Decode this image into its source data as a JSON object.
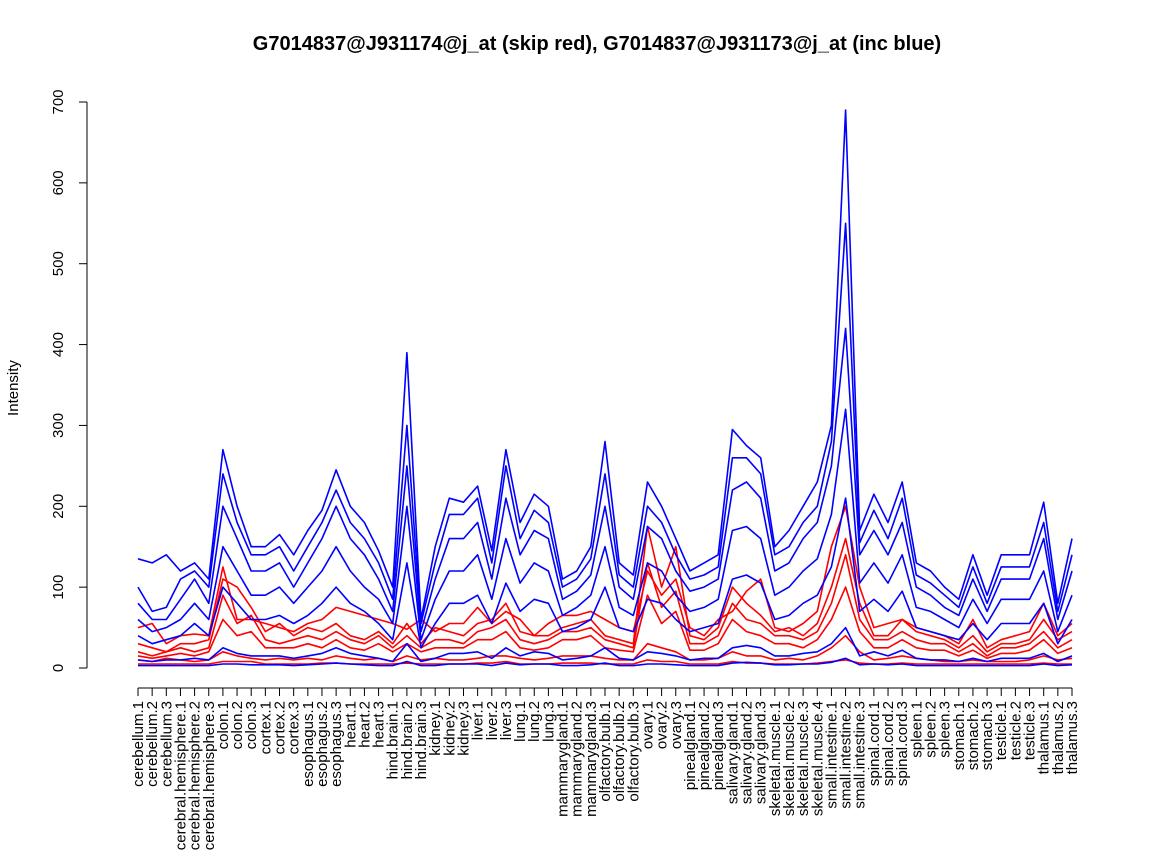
{
  "chart_data": {
    "type": "line",
    "title": "G7014837@J931174@j_at (skip red), G7014837@J931173@j_at (inc blue)",
    "xlabel": "",
    "ylabel": "Intensity",
    "ylim": [
      0,
      700
    ],
    "yticks": [
      0,
      100,
      200,
      300,
      400,
      500,
      600,
      700
    ],
    "grid": false,
    "categories": [
      "cerebellum.1",
      "cerebellum.2",
      "cerebellum.3",
      "cerebral.hemisphere.1",
      "cerebral.hemisphere.2",
      "cerebral.hemisphere.3",
      "colon.1",
      "colon.2",
      "colon.3",
      "cortex.1",
      "cortex.2",
      "cortex.3",
      "esophagus.1",
      "esophagus.2",
      "esophagus.3",
      "heart.1",
      "heart.2",
      "heart.3",
      "hind.brain.1",
      "hind.brain.2",
      "hind.brain.3",
      "kidney.1",
      "kidney.2",
      "kidney.3",
      "liver.1",
      "liver.2",
      "liver.3",
      "lung.1",
      "lung.2",
      "lung.3",
      "mammarygland.1",
      "mammarygland.2",
      "mammarygland.3",
      "olfactory.bulb.1",
      "olfactory.bulb.2",
      "olfactory.bulb.3",
      "ovary.1",
      "ovary.2",
      "ovary.3",
      "pinealgland.1",
      "pinealgland.2",
      "pinealgland.3",
      "salivary.gland.1",
      "salivary.gland.2",
      "salivary.gland.3",
      "skeletal.muscle.1",
      "skeletal.muscle.2",
      "skeletal.muscle.3",
      "skeletal.muscle.4",
      "small.intestine.1",
      "small.intestine.2",
      "small.intestine.3",
      "spinal.cord.1",
      "spinal.cord.2",
      "spinal.cord.3",
      "spleen.1",
      "spleen.2",
      "spleen.3",
      "stomach.1",
      "stomach.2",
      "stomach.3",
      "testicle.1",
      "testicle.2",
      "testicle.3",
      "thalamus.1",
      "thalamus.2",
      "thalamus.3"
    ],
    "series": [
      {
        "name": "skip-1",
        "group": "skip",
        "color": "#ff0000",
        "values": [
          50,
          55,
          30,
          40,
          42,
          40,
          125,
          60,
          60,
          55,
          50,
          45,
          55,
          60,
          75,
          70,
          65,
          60,
          55,
          48,
          60,
          45,
          55,
          55,
          75,
          55,
          70,
          60,
          40,
          55,
          65,
          65,
          70,
          60,
          50,
          45,
          120,
          90,
          110,
          50,
          40,
          60,
          70,
          95,
          110,
          50,
          45,
          55,
          70,
          150,
          200,
          100,
          50,
          55,
          60,
          50,
          45,
          40,
          30,
          60,
          25,
          35,
          40,
          45,
          80,
          40,
          55
        ]
      },
      {
        "name": "skip-2",
        "group": "skip",
        "color": "#ff0000",
        "values": [
          30,
          25,
          20,
          30,
          30,
          35,
          110,
          100,
          75,
          45,
          55,
          40,
          50,
          45,
          55,
          40,
          35,
          45,
          30,
          55,
          30,
          50,
          45,
          40,
          55,
          60,
          80,
          45,
          40,
          40,
          50,
          55,
          60,
          40,
          35,
          30,
          175,
          100,
          150,
          40,
          35,
          50,
          100,
          80,
          65,
          45,
          50,
          40,
          55,
          100,
          160,
          80,
          40,
          40,
          60,
          45,
          40,
          35,
          25,
          40,
          20,
          30,
          30,
          35,
          60,
          35,
          45
        ]
      },
      {
        "name": "skip-3",
        "group": "skip",
        "color": "#ff0000",
        "values": [
          10,
          8,
          12,
          10,
          8,
          10,
          20,
          15,
          12,
          10,
          12,
          10,
          12,
          10,
          15,
          12,
          10,
          12,
          8,
          15,
          10,
          12,
          10,
          10,
          12,
          15,
          15,
          12,
          10,
          12,
          15,
          15,
          15,
          12,
          10,
          10,
          30,
          25,
          20,
          10,
          10,
          12,
          20,
          15,
          15,
          10,
          12,
          10,
          15,
          25,
          40,
          20,
          10,
          12,
          15,
          12,
          10,
          8,
          8,
          10,
          8,
          8,
          8,
          10,
          15,
          10,
          12
        ]
      },
      {
        "name": "skip-4",
        "group": "skip",
        "color": "#ff0000",
        "values": [
          20,
          15,
          20,
          25,
          20,
          25,
          90,
          55,
          65,
          35,
          30,
          35,
          40,
          35,
          45,
          35,
          30,
          40,
          25,
          40,
          25,
          35,
          35,
          30,
          45,
          50,
          60,
          35,
          30,
          35,
          45,
          45,
          50,
          35,
          30,
          25,
          130,
          75,
          95,
          30,
          30,
          40,
          80,
          60,
          55,
          40,
          40,
          35,
          45,
          80,
          140,
          60,
          35,
          35,
          45,
          35,
          30,
          30,
          20,
          30,
          15,
          25,
          25,
          30,
          45,
          25,
          35
        ]
      },
      {
        "name": "skip-5",
        "group": "skip",
        "color": "#ff0000",
        "values": [
          5,
          5,
          5,
          5,
          5,
          5,
          8,
          8,
          8,
          5,
          5,
          5,
          5,
          6,
          6,
          5,
          5,
          5,
          5,
          6,
          5,
          5,
          5,
          5,
          6,
          6,
          8,
          5,
          5,
          5,
          6,
          6,
          6,
          5,
          5,
          5,
          10,
          8,
          8,
          5,
          5,
          5,
          8,
          6,
          6,
          5,
          5,
          5,
          6,
          8,
          10,
          6,
          5,
          5,
          6,
          5,
          5,
          5,
          5,
          5,
          5,
          5,
          5,
          5,
          6,
          5,
          5
        ]
      },
      {
        "name": "skip-6",
        "group": "skip",
        "color": "#ff0000",
        "values": [
          15,
          12,
          15,
          18,
          15,
          20,
          60,
          40,
          45,
          25,
          25,
          25,
          30,
          25,
          35,
          25,
          22,
          30,
          20,
          30,
          20,
          25,
          25,
          25,
          35,
          35,
          45,
          25,
          22,
          25,
          35,
          35,
          40,
          25,
          22,
          20,
          90,
          55,
          70,
          22,
          22,
          30,
          60,
          45,
          40,
          30,
          30,
          25,
          35,
          60,
          100,
          45,
          25,
          25,
          35,
          25,
          22,
          22,
          15,
          22,
          12,
          18,
          18,
          22,
          35,
          18,
          25
        ]
      },
      {
        "name": "inc-1",
        "group": "inc",
        "color": "#0000ff",
        "values": [
          135,
          130,
          140,
          120,
          130,
          110,
          270,
          200,
          150,
          150,
          165,
          140,
          170,
          195,
          245,
          200,
          180,
          145,
          100,
          390,
          60,
          150,
          210,
          205,
          225,
          145,
          270,
          180,
          215,
          200,
          110,
          120,
          150,
          280,
          130,
          115,
          230,
          200,
          160,
          120,
          130,
          140,
          295,
          275,
          260,
          150,
          170,
          200,
          230,
          300,
          690,
          170,
          215,
          180,
          230,
          130,
          120,
          100,
          85,
          140,
          90,
          140,
          140,
          140,
          205,
          80,
          160
        ]
      },
      {
        "name": "inc-2",
        "group": "inc",
        "color": "#0000ff",
        "values": [
          100,
          70,
          75,
          110,
          120,
          100,
          240,
          180,
          140,
          140,
          150,
          120,
          150,
          180,
          220,
          180,
          160,
          130,
          85,
          300,
          55,
          130,
          190,
          190,
          210,
          130,
          250,
          160,
          195,
          180,
          100,
          110,
          135,
          240,
          115,
          100,
          200,
          180,
          140,
          110,
          115,
          125,
          260,
          260,
          240,
          140,
          150,
          180,
          200,
          280,
          550,
          155,
          195,
          160,
          210,
          115,
          105,
          90,
          75,
          125,
          80,
          125,
          125,
          125,
          180,
          70,
          140
        ]
      },
      {
        "name": "inc-3",
        "group": "inc",
        "color": "#0000ff",
        "values": [
          80,
          60,
          60,
          85,
          110,
          80,
          200,
          160,
          120,
          120,
          130,
          100,
          130,
          160,
          200,
          160,
          140,
          110,
          70,
          250,
          45,
          110,
          160,
          160,
          180,
          110,
          210,
          140,
          170,
          160,
          85,
          95,
          115,
          200,
          100,
          85,
          175,
          160,
          120,
          95,
          100,
          110,
          220,
          230,
          210,
          120,
          130,
          160,
          180,
          250,
          420,
          140,
          170,
          140,
          180,
          100,
          90,
          75,
          65,
          110,
          70,
          110,
          110,
          110,
          160,
          60,
          120
        ]
      },
      {
        "name": "inc-4",
        "group": "inc",
        "color": "#0000ff",
        "values": [
          60,
          45,
          50,
          60,
          80,
          60,
          150,
          120,
          90,
          90,
          100,
          80,
          100,
          120,
          150,
          120,
          100,
          85,
          55,
          200,
          35,
          85,
          120,
          120,
          140,
          85,
          160,
          105,
          130,
          120,
          65,
          75,
          90,
          150,
          75,
          65,
          130,
          120,
          90,
          70,
          75,
          85,
          170,
          175,
          160,
          90,
          100,
          120,
          135,
          190,
          320,
          105,
          130,
          105,
          140,
          75,
          70,
          60,
          50,
          85,
          55,
          85,
          85,
          85,
          120,
          45,
          90
        ]
      },
      {
        "name": "inc-5",
        "group": "inc",
        "color": "#0000ff",
        "values": [
          40,
          30,
          35,
          40,
          55,
          40,
          100,
          80,
          60,
          60,
          65,
          55,
          65,
          80,
          100,
          80,
          70,
          55,
          35,
          130,
          25,
          55,
          80,
          80,
          90,
          55,
          105,
          70,
          85,
          80,
          45,
          50,
          60,
          100,
          50,
          45,
          85,
          80,
          60,
          45,
          50,
          55,
          110,
          115,
          105,
          60,
          65,
          80,
          90,
          125,
          210,
          70,
          85,
          70,
          95,
          50,
          45,
          40,
          35,
          55,
          35,
          55,
          55,
          55,
          80,
          30,
          60
        ]
      },
      {
        "name": "inc-6",
        "group": "inc",
        "color": "#0000ff",
        "values": [
          10,
          8,
          10,
          10,
          12,
          10,
          25,
          18,
          15,
          15,
          15,
          12,
          15,
          18,
          25,
          18,
          15,
          12,
          8,
          30,
          8,
          12,
          18,
          18,
          20,
          12,
          25,
          15,
          20,
          18,
          10,
          12,
          15,
          25,
          12,
          10,
          20,
          18,
          15,
          10,
          12,
          12,
          25,
          28,
          25,
          15,
          15,
          18,
          20,
          30,
          50,
          15,
          20,
          15,
          22,
          12,
          10,
          10,
          8,
          12,
          8,
          12,
          12,
          12,
          18,
          8,
          15
        ]
      },
      {
        "name": "inc-7",
        "group": "inc",
        "color": "#0000ff",
        "values": [
          3,
          3,
          3,
          3,
          3,
          3,
          5,
          5,
          4,
          4,
          4,
          3,
          4,
          5,
          6,
          5,
          4,
          3,
          3,
          8,
          3,
          3,
          5,
          5,
          5,
          3,
          6,
          4,
          5,
          5,
          3,
          3,
          4,
          6,
          3,
          3,
          5,
          5,
          4,
          3,
          3,
          3,
          6,
          7,
          6,
          4,
          4,
          5,
          5,
          7,
          12,
          4,
          5,
          4,
          5,
          3,
          3,
          3,
          3,
          3,
          3,
          3,
          3,
          3,
          5,
          3,
          4
        ]
      }
    ]
  }
}
